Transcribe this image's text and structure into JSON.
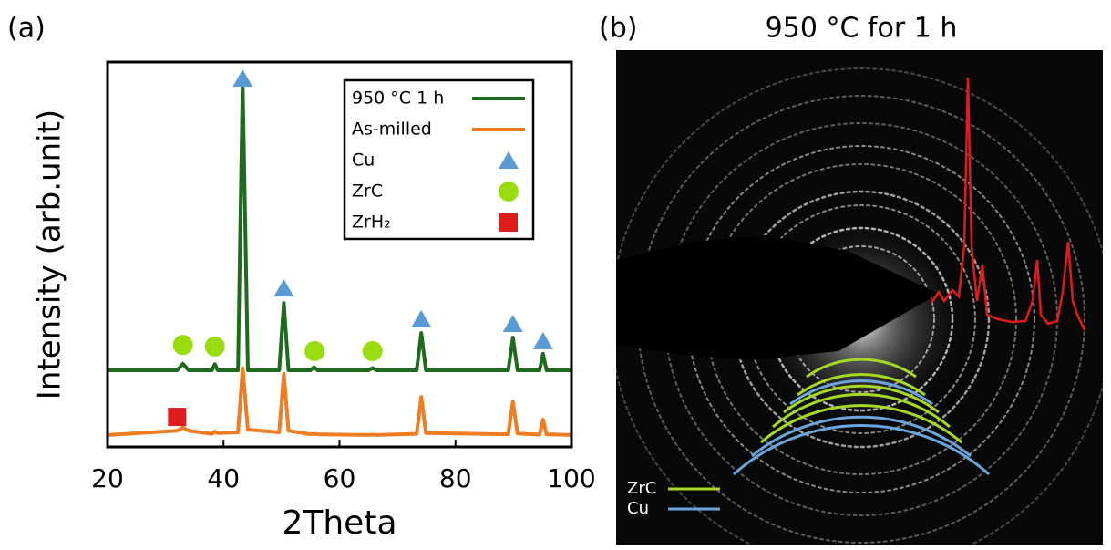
{
  "chart_data": {
    "type": "line",
    "panel_label": "(a)",
    "x_label": "2Theta",
    "y_label": "Intensity (arb.unit)",
    "x": [
      20,
      32,
      33,
      34,
      38,
      38.5,
      39,
      42.5,
      43.3,
      44.2,
      49.6,
      50.4,
      51.2,
      55,
      55.6,
      56.2,
      65,
      65.7,
      66.4,
      73.3,
      74.1,
      74.9,
      89.1,
      89.9,
      90.7,
      94.5,
      95.1,
      95.7,
      100
    ],
    "series": [
      {
        "name": "950 °C 1 h",
        "color": "#1e6b1e",
        "values": [
          19.9,
          19.9,
          21.6,
          19.9,
          19.9,
          21.5,
          19.9,
          19.9,
          94.8,
          19.9,
          19.9,
          37.4,
          19.9,
          19.9,
          20.7,
          19.9,
          19.9,
          20.5,
          19.9,
          19.9,
          29.6,
          19.9,
          19.9,
          28.4,
          19.9,
          19.9,
          24.2,
          19.9,
          19.9
        ]
      },
      {
        "name": "As-milled",
        "color": "#f07c22",
        "values": [
          3.1,
          4.2,
          5.0,
          4.2,
          3.4,
          4.0,
          3.6,
          3.8,
          20.4,
          4.5,
          3.8,
          19.0,
          4.2,
          3.3,
          3.4,
          3.3,
          3.1,
          3.2,
          3.1,
          3.4,
          13.0,
          3.6,
          3.3,
          11.8,
          3.5,
          3.2,
          7.1,
          3.3,
          3.1
        ]
      }
    ],
    "markers": [
      {
        "name": "Cu",
        "shape": "triangle",
        "color": "#5b9bd5",
        "x": [
          43.3,
          50.4,
          74.1,
          89.9,
          95.1
        ],
        "y": [
          95.7,
          41.2,
          33.2,
          32.0,
          27.5
        ]
      },
      {
        "name": "ZrC",
        "shape": "circle",
        "color": "#99dd11",
        "x": [
          33,
          38.5,
          55.7,
          65.7
        ],
        "y": [
          26.5,
          26.1,
          24.9,
          24.9
        ]
      },
      {
        "name": "ZrH₂",
        "shape": "square",
        "color": "#dd1c1c",
        "x": [
          32
        ],
        "y": [
          7.8
        ]
      }
    ],
    "xlim": [
      20,
      100
    ],
    "xticks": [
      20,
      40,
      60,
      80,
      100
    ],
    "ylim": [
      0,
      100
    ],
    "legend": "top-right"
  },
  "panel_b": {
    "panel_label": "(b)",
    "title": "950 °C for 1 h",
    "legend": [
      {
        "name": "ZrC",
        "color": "#a6d824"
      },
      {
        "name": "Cu",
        "color": "#6aa6dc"
      }
    ]
  }
}
